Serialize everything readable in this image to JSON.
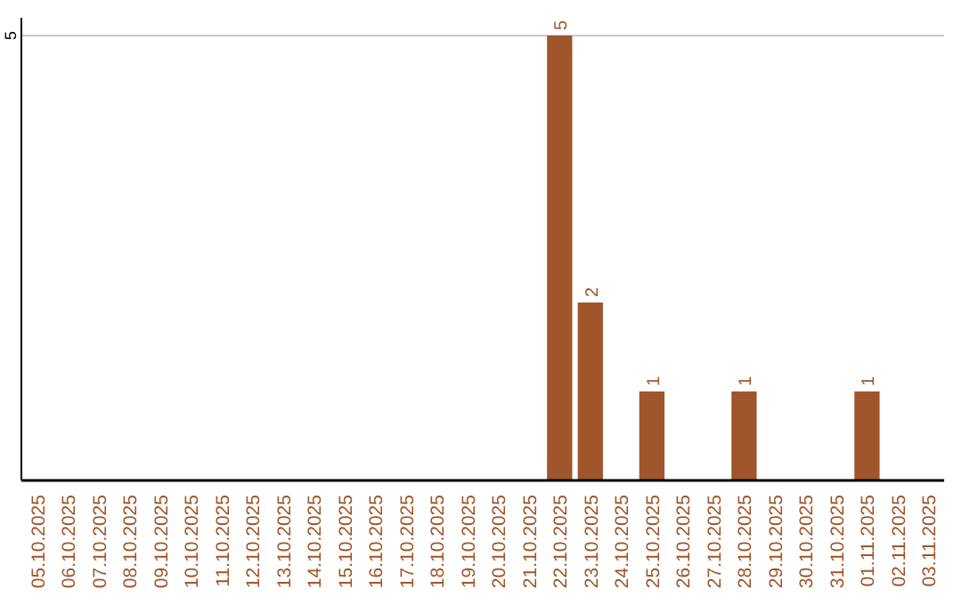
{
  "chart_data": {
    "type": "bar",
    "categories": [
      "05.10.2025",
      "06.10.2025",
      "07.10.2025",
      "08.10.2025",
      "09.10.2025",
      "10.10.2025",
      "11.10.2025",
      "12.10.2025",
      "13.10.2025",
      "14.10.2025",
      "15.10.2025",
      "16.10.2025",
      "17.10.2025",
      "18.10.2025",
      "19.10.2025",
      "20.10.2025",
      "21.10.2025",
      "22.10.2025",
      "23.10.2025",
      "24.10.2025",
      "25.10.2025",
      "26.10.2025",
      "27.10.2025",
      "28.10.2025",
      "29.10.2025",
      "30.10.2025",
      "31.10.2025",
      "01.11.2025",
      "02.11.2025",
      "03.11.2025"
    ],
    "values": [
      null,
      null,
      null,
      null,
      null,
      null,
      null,
      null,
      null,
      null,
      null,
      null,
      null,
      null,
      null,
      null,
      null,
      5,
      2,
      null,
      1,
      null,
      null,
      1,
      null,
      null,
      null,
      1,
      null,
      null
    ],
    "value_labels": [
      null,
      null,
      null,
      null,
      null,
      null,
      null,
      null,
      null,
      null,
      null,
      null,
      null,
      null,
      null,
      null,
      null,
      "5",
      "2",
      null,
      "1",
      null,
      null,
      "1",
      null,
      null,
      null,
      "1",
      null,
      null
    ],
    "color": "#a0562a",
    "ylim": [
      0,
      5.2
    ],
    "yticks": [
      5
    ],
    "grid": "y"
  }
}
